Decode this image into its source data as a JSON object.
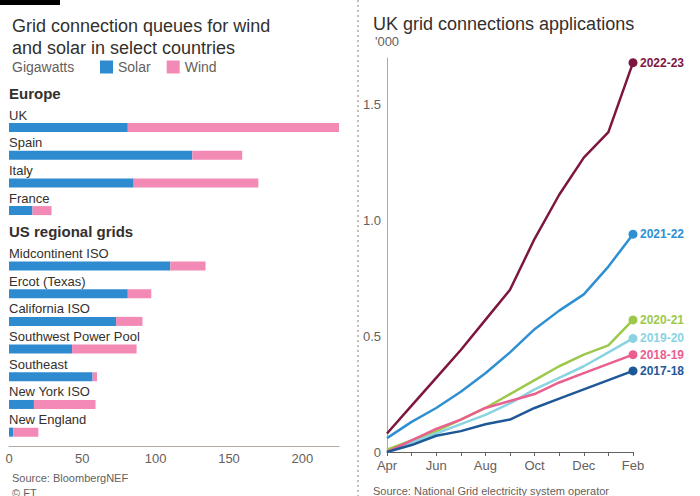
{
  "chart_data": [
    {
      "type": "bar",
      "title": "Grid connection queues for wind and solar in select countries",
      "subtitle": "Gigawatts",
      "orientation": "horizontal",
      "stacked": true,
      "legend": "top",
      "grid": false,
      "categories": [
        "UK",
        "Spain",
        "Italy",
        "France",
        "Midcontinent ISO",
        "Ercot (Texas)",
        "California ISO",
        "Southwest Power Pool",
        "Southeast",
        "New York ISO",
        "New England"
      ],
      "groups": [
        {
          "label": "Europe",
          "members": [
            "UK",
            "Spain",
            "Italy",
            "France"
          ]
        },
        {
          "label": "US regional grids",
          "members": [
            "Midcontinent ISO",
            "Ercot (Texas)",
            "California ISO",
            "Southwest Power Pool",
            "Southeast",
            "New York ISO",
            "New England"
          ]
        }
      ],
      "series": [
        {
          "name": "Solar",
          "color": "#2e8bd0",
          "values": [
            81,
            125,
            85,
            16,
            110,
            81,
            73,
            43,
            57,
            17,
            3
          ]
        },
        {
          "name": "Wind",
          "color": "#f28ab5",
          "values": [
            144,
            34,
            85,
            13,
            24,
            16,
            18,
            44,
            3,
            42,
            17
          ]
        }
      ],
      "xlim": [
        0,
        225
      ],
      "xticks": [
        0,
        50,
        100,
        150,
        200
      ],
      "source": "Source: BloombergNEF"
    },
    {
      "type": "line",
      "title": "UK grid connections applications",
      "ylabel": "'000",
      "grid": false,
      "categories": [
        "Apr",
        null,
        "Jun",
        null,
        "Aug",
        null,
        "Oct",
        null,
        "Dec",
        null,
        "Feb"
      ],
      "series": [
        {
          "name": "2022-23",
          "color": "#7d1740",
          "values": [
            0.08,
            0.2,
            0.32,
            0.44,
            0.57,
            0.7,
            0.92,
            1.11,
            1.27,
            1.38,
            1.68
          ]
        },
        {
          "name": "2021-22",
          "color": "#2e8fd3",
          "values": [
            0.06,
            0.13,
            0.19,
            0.26,
            0.34,
            0.43,
            0.53,
            0.61,
            0.68,
            0.8,
            0.94
          ]
        },
        {
          "name": "2020-21",
          "color": "#9dc94b",
          "values": [
            0.01,
            0.05,
            0.09,
            0.14,
            0.19,
            0.25,
            0.31,
            0.37,
            0.42,
            0.46,
            0.57
          ]
        },
        {
          "name": "2019-20",
          "color": "#8ad3e2",
          "values": [
            0.0,
            0.04,
            0.08,
            0.12,
            0.16,
            0.21,
            0.27,
            0.32,
            0.37,
            0.43,
            0.49
          ]
        },
        {
          "name": "2018-19",
          "color": "#ea5f8f",
          "values": [
            0.0,
            0.05,
            0.1,
            0.14,
            0.19,
            0.22,
            0.25,
            0.3,
            0.34,
            0.38,
            0.42
          ]
        },
        {
          "name": "2017-18",
          "color": "#1f5896",
          "values": [
            0.0,
            0.03,
            0.07,
            0.09,
            0.12,
            0.14,
            0.19,
            0.23,
            0.27,
            0.31,
            0.35
          ]
        }
      ],
      "ylim": [
        0,
        1.7
      ],
      "yticks": [
        0,
        0.5,
        {
          "value": 1,
          "label": "1.0"
        },
        1.5
      ],
      "source": "Source: National Grid electricity system operator"
    }
  ],
  "credit": "© FT"
}
